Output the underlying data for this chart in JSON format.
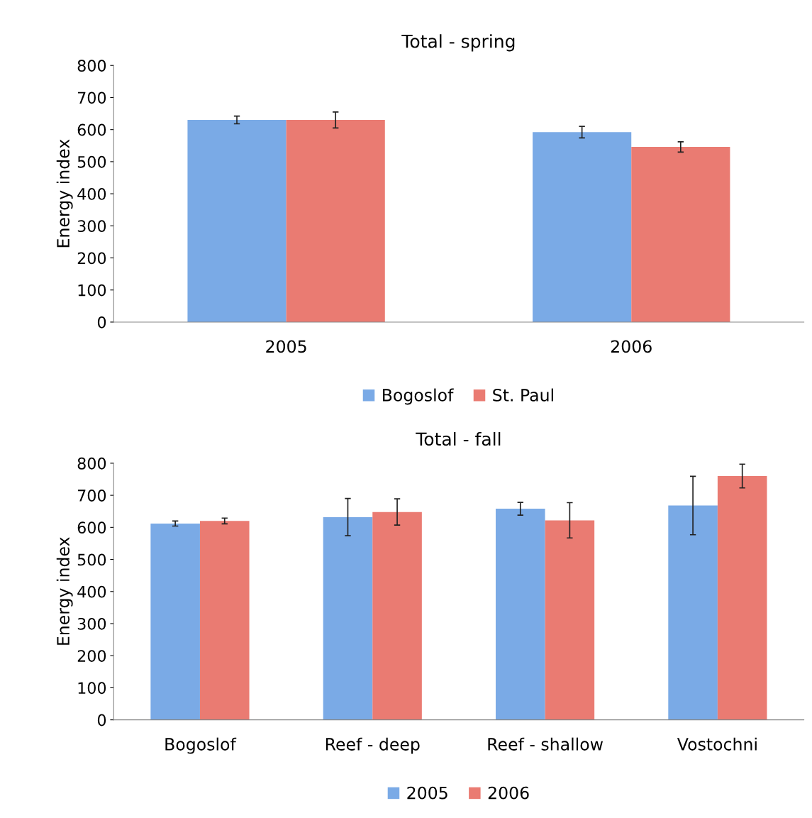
{
  "chart_data": [
    {
      "type": "bar",
      "title": "Total - spring",
      "ylabel": "Energy index",
      "categories": [
        "2005",
        "2006"
      ],
      "series": [
        {
          "name": "Bogoslof",
          "color": "#7aaae6",
          "values": [
            630,
            592
          ],
          "errors": [
            12,
            18
          ]
        },
        {
          "name": "St. Paul",
          "color": "#ea7b72",
          "values": [
            630,
            546
          ],
          "errors": [
            25,
            16
          ]
        }
      ],
      "ylim": [
        0,
        800
      ],
      "yticks": [
        0,
        100,
        200,
        300,
        400,
        500,
        600,
        700,
        800
      ],
      "grid": false,
      "legend": "bottom"
    },
    {
      "type": "bar",
      "title": "Total - fall",
      "ylabel": "Energy index",
      "categories": [
        "Bogoslof",
        "Reef - deep",
        "Reef - shallow",
        "Vostochni"
      ],
      "series": [
        {
          "name": "2005",
          "color": "#7aaae6",
          "values": [
            612,
            632,
            658,
            668
          ],
          "errors": [
            8,
            58,
            20,
            91
          ]
        },
        {
          "name": "2006",
          "color": "#ea7b72",
          "values": [
            620,
            648,
            622,
            760
          ],
          "errors": [
            9,
            41,
            55,
            37
          ]
        }
      ],
      "ylim": [
        0,
        800
      ],
      "yticks": [
        0,
        100,
        200,
        300,
        400,
        500,
        600,
        700,
        800
      ],
      "grid": false,
      "legend": "bottom"
    }
  ]
}
